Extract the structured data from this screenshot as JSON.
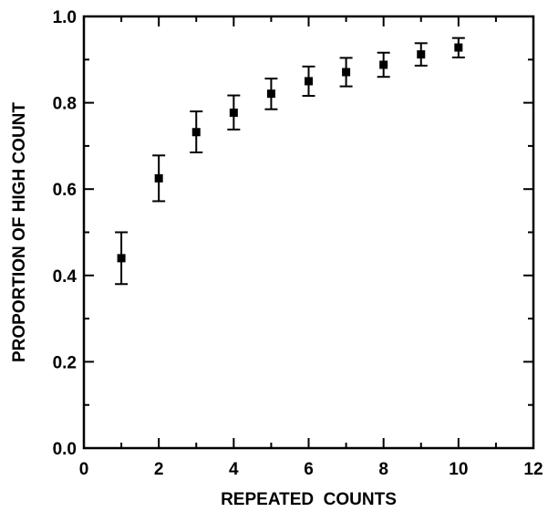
{
  "chart_data": {
    "type": "scatter",
    "title": "",
    "xlabel": "REPEATED  COUNTS",
    "ylabel": "PROPORTION OF HIGH COUNT",
    "xlim": [
      0,
      12
    ],
    "ylim": [
      0.0,
      1.0
    ],
    "x_ticks": [
      0,
      2,
      4,
      6,
      8,
      10,
      12
    ],
    "x_tick_labels": [
      "0",
      "2",
      "4",
      "6",
      "8",
      "10",
      "12"
    ],
    "x_minor_ticks": [
      1,
      3,
      5,
      7,
      9,
      11
    ],
    "y_ticks": [
      0.0,
      0.2,
      0.4,
      0.6,
      0.8,
      1.0
    ],
    "y_tick_labels": [
      "0.0",
      "0.2",
      "0.4",
      "0.6",
      "0.8",
      "1.0"
    ],
    "y_minor_ticks": [
      0.1,
      0.3,
      0.5,
      0.7,
      0.9
    ],
    "grid": false,
    "legend": "none",
    "marker": "square",
    "color": "#000000",
    "series": [
      {
        "x": [
          1,
          2,
          3,
          4,
          5,
          6,
          7,
          8,
          9,
          10
        ],
        "y": [
          0.44,
          0.625,
          0.732,
          0.777,
          0.821,
          0.85,
          0.871,
          0.888,
          0.912,
          0.928
        ],
        "y_low": [
          0.38,
          0.572,
          0.685,
          0.738,
          0.785,
          0.816,
          0.838,
          0.86,
          0.886,
          0.905
        ],
        "y_high": [
          0.5,
          0.678,
          0.78,
          0.817,
          0.856,
          0.884,
          0.904,
          0.916,
          0.938,
          0.95
        ]
      }
    ]
  }
}
